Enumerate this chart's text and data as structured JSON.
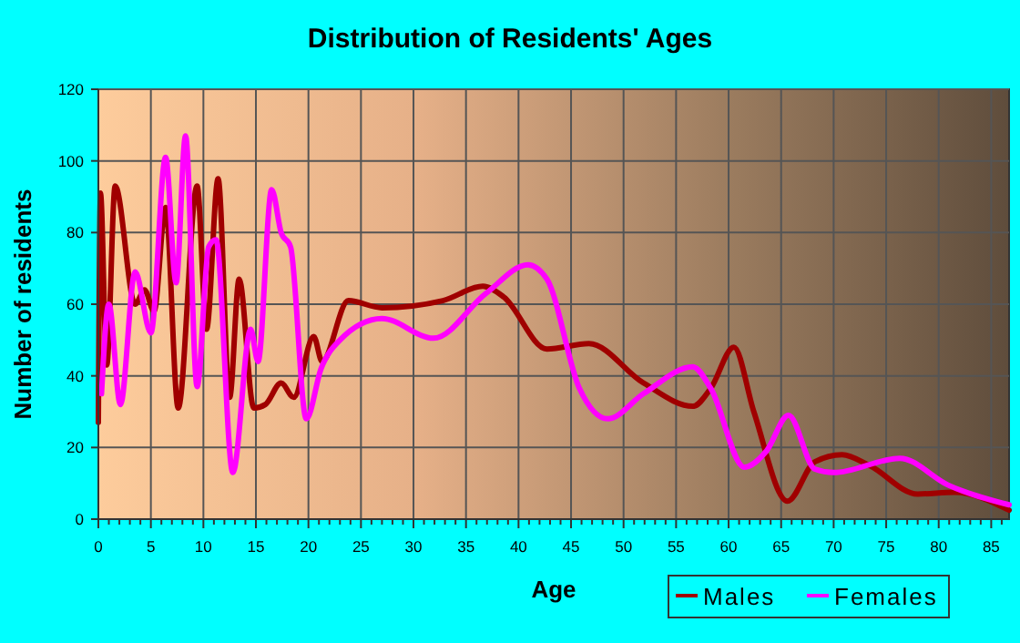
{
  "chart_data": {
    "type": "line",
    "title": "Distribution of Residents' Ages",
    "xlabel": "Age",
    "ylabel": "Number of residents",
    "xlim": [
      0,
      86.7
    ],
    "ylim": [
      0,
      120
    ],
    "xticks": [
      0,
      {
        "value": 1,
        "label": null
      },
      {
        "value": 2,
        "label": null
      },
      {
        "value": 3,
        "label": null
      },
      {
        "value": 4,
        "label": null
      },
      5,
      {
        "value": 6,
        "label": null
      },
      {
        "value": 7,
        "label": null
      },
      {
        "value": 8,
        "label": null
      },
      {
        "value": 9,
        "label": null
      },
      10,
      {
        "value": 11,
        "label": null
      },
      {
        "value": 12,
        "label": null
      },
      {
        "value": 13,
        "label": null
      },
      {
        "value": 14,
        "label": null
      },
      15,
      {
        "value": 16,
        "label": null
      },
      {
        "value": 17,
        "label": null
      },
      {
        "value": 18,
        "label": null
      },
      {
        "value": 19,
        "label": null
      },
      20,
      {
        "value": 21,
        "label": null
      },
      {
        "value": 22,
        "label": null
      },
      {
        "value": 23,
        "label": null
      },
      {
        "value": 24,
        "label": null
      },
      25,
      {
        "value": 26,
        "label": null
      },
      {
        "value": 27,
        "label": null
      },
      {
        "value": 28,
        "label": null
      },
      {
        "value": 29,
        "label": null
      },
      30,
      {
        "value": 31,
        "label": null
      },
      {
        "value": 32,
        "label": null
      },
      {
        "value": 33,
        "label": null
      },
      {
        "value": 34,
        "label": null
      },
      35,
      {
        "value": 36,
        "label": null
      },
      {
        "value": 37,
        "label": null
      },
      {
        "value": 38,
        "label": null
      },
      {
        "value": 39,
        "label": null
      },
      40,
      {
        "value": 41,
        "label": null
      },
      {
        "value": 42,
        "label": null
      },
      {
        "value": 43,
        "label": null
      },
      {
        "value": 44,
        "label": null
      },
      45,
      {
        "value": 46,
        "label": null
      },
      {
        "value": 47,
        "label": null
      },
      {
        "value": 48,
        "label": null
      },
      {
        "value": 49,
        "label": null
      },
      50,
      {
        "value": 51,
        "label": null
      },
      {
        "value": 52,
        "label": null
      },
      {
        "value": 53,
        "label": null
      },
      {
        "value": 54,
        "label": null
      },
      55,
      {
        "value": 56,
        "label": null
      },
      {
        "value": 57,
        "label": null
      },
      {
        "value": 58,
        "label": null
      },
      {
        "value": 59,
        "label": null
      },
      60,
      {
        "value": 61,
        "label": null
      },
      {
        "value": 62,
        "label": null
      },
      {
        "value": 63,
        "label": null
      },
      {
        "value": 64,
        "label": null
      },
      65,
      {
        "value": 66,
        "label": null
      },
      {
        "value": 67,
        "label": null
      },
      {
        "value": 68,
        "label": null
      },
      {
        "value": 69,
        "label": null
      },
      70,
      {
        "value": 71,
        "label": null
      },
      {
        "value": 72,
        "label": null
      },
      {
        "value": 73,
        "label": null
      },
      {
        "value": 74,
        "label": null
      },
      75,
      {
        "value": 76,
        "label": null
      },
      {
        "value": 77,
        "label": null
      },
      {
        "value": 78,
        "label": null
      },
      {
        "value": 79,
        "label": null
      },
      80,
      {
        "value": 81,
        "label": null
      },
      {
        "value": 82,
        "label": null
      },
      {
        "value": 83,
        "label": null
      },
      {
        "value": 84,
        "label": null
      },
      85,
      {
        "value": 86,
        "label": null
      }
    ],
    "yticks": [
      0,
      20,
      40,
      60,
      80,
      100,
      120
    ],
    "grid": true,
    "legend": "bottom right",
    "marker": "none",
    "line_style": "solid",
    "series": [
      {
        "name": "Males",
        "color": "#a00000",
        "x": [
          0,
          0.2,
          0.8,
          1.6,
          3.5,
          4.4,
          5.3,
          6.4,
          7.6,
          9.4,
          10.3,
          11.4,
          12.5,
          13.4,
          14.8,
          15.9,
          17.4,
          18.6,
          20.5,
          21.3,
          23.8,
          27,
          32.8,
          36.6,
          38.6,
          42.7,
          46.7,
          51.9,
          56.6,
          58.3,
          60.5,
          62.4,
          65.6,
          68.2,
          70.8,
          73.4,
          78,
          81.5,
          86.7
        ],
        "values": [
          27,
          91,
          43,
          93,
          60,
          64,
          58,
          87,
          31,
          93,
          53,
          95,
          34,
          67,
          31,
          32,
          38,
          34,
          51,
          44,
          61,
          59,
          61,
          65,
          62,
          47.5,
          49,
          38,
          31.5,
          36.5,
          48,
          30,
          5,
          16,
          18,
          15,
          7,
          7.5,
          2.5
        ]
      },
      {
        "name": "Females",
        "color": "#ff00ff",
        "x": [
          0.3,
          1.0,
          2.1,
          3.5,
          5,
          6.4,
          7.4,
          8.3,
          9.4,
          10.5,
          11.2,
          12.8,
          14.5,
          15.2,
          16.5,
          17.4,
          18.3,
          19.8,
          21.2,
          23,
          27,
          31.9,
          36.9,
          40.9,
          42.7,
          45.8,
          48.5,
          51.9,
          56.6,
          58.3,
          61.5,
          63.6,
          65.7,
          68.2,
          70,
          76.3,
          80.9,
          86.7
        ],
        "values": [
          35,
          60,
          32,
          69,
          52,
          101,
          66,
          107,
          37,
          76,
          78,
          13,
          53,
          44,
          92,
          80,
          76,
          28,
          42,
          50,
          56,
          50.5,
          63,
          71,
          67,
          36.5,
          28,
          35,
          42.5,
          36.5,
          14.5,
          19,
          29,
          14,
          13,
          17,
          9.5,
          4
        ]
      }
    ]
  }
}
